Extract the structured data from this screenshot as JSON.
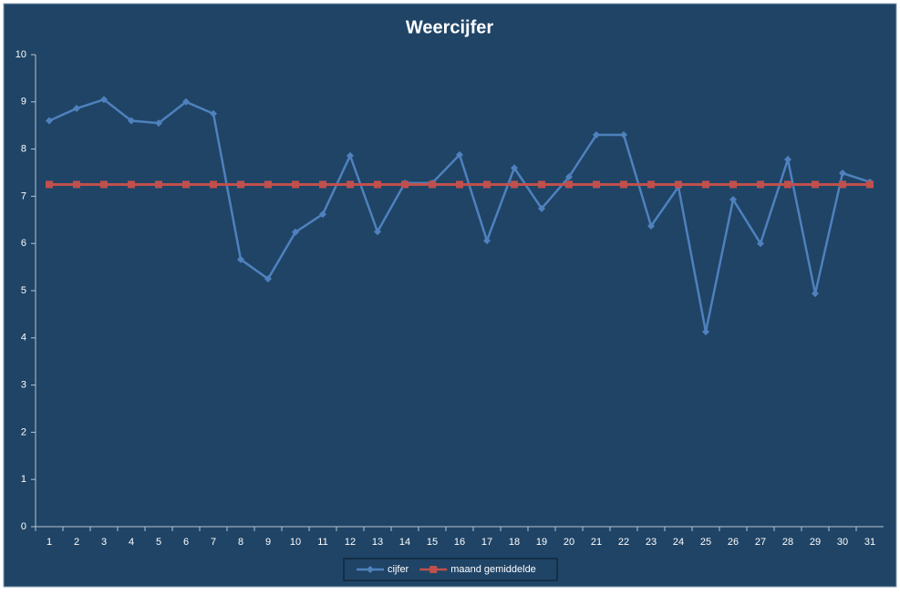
{
  "chart_data": {
    "type": "line",
    "title": "Weercijfer",
    "categories": [
      1,
      2,
      3,
      4,
      5,
      6,
      7,
      8,
      9,
      10,
      11,
      12,
      13,
      14,
      15,
      16,
      17,
      18,
      19,
      20,
      21,
      22,
      23,
      24,
      25,
      26,
      27,
      28,
      29,
      30,
      31
    ],
    "series": [
      {
        "name": "cijfer",
        "color": "#4f81bd",
        "marker": "diamond",
        "values": [
          8.6,
          8.86,
          9.05,
          8.6,
          8.55,
          9.0,
          8.75,
          5.66,
          5.25,
          6.24,
          6.62,
          7.86,
          6.25,
          7.28,
          7.28,
          7.88,
          6.06,
          7.6,
          6.74,
          7.41,
          8.3,
          8.3,
          6.37,
          7.2,
          4.13,
          6.93,
          6.0,
          7.78,
          4.94,
          7.49,
          7.3
        ]
      },
      {
        "name": "maand gemiddelde",
        "color": "#c0504d",
        "marker": "square",
        "values": [
          7.25,
          7.25,
          7.25,
          7.25,
          7.25,
          7.25,
          7.25,
          7.25,
          7.25,
          7.25,
          7.25,
          7.25,
          7.25,
          7.25,
          7.25,
          7.25,
          7.25,
          7.25,
          7.25,
          7.25,
          7.25,
          7.25,
          7.25,
          7.25,
          7.25,
          7.25,
          7.25,
          7.25,
          7.25,
          7.25,
          7.25
        ]
      }
    ],
    "ylim": [
      0,
      10
    ],
    "yticks": [
      0,
      1,
      2,
      3,
      4,
      5,
      6,
      7,
      8,
      9,
      10
    ],
    "grid": false,
    "legend": "bottom"
  }
}
